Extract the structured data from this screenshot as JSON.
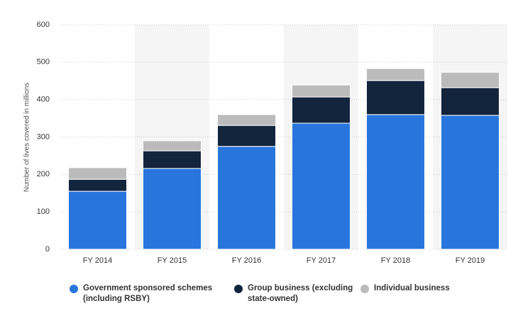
{
  "chart_data": {
    "type": "stacked_bar",
    "y_label": "Number of lives covered in millions",
    "categories": [
      "FY 2014",
      "FY 2015",
      "FY 2016",
      "FY 2017",
      "FY 2018",
      "FY 2019"
    ],
    "series": [
      {
        "name": "Government sponsored schemes (including RSBY)",
        "color": "#2876dd",
        "values": [
          155,
          216,
          275,
          337,
          360,
          358
        ]
      },
      {
        "name": "Group business (excluding state-owned)",
        "color": "#13243d",
        "values": [
          32,
          47,
          56,
          70,
          91,
          74
        ]
      },
      {
        "name": "Individual business",
        "color": "#bbbbbb",
        "values": [
          31,
          27,
          29,
          32,
          32,
          41
        ]
      }
    ],
    "ylim": [
      0,
      600
    ],
    "yticks": [
      0,
      100,
      200,
      300,
      400,
      500,
      600
    ],
    "grid": true
  }
}
